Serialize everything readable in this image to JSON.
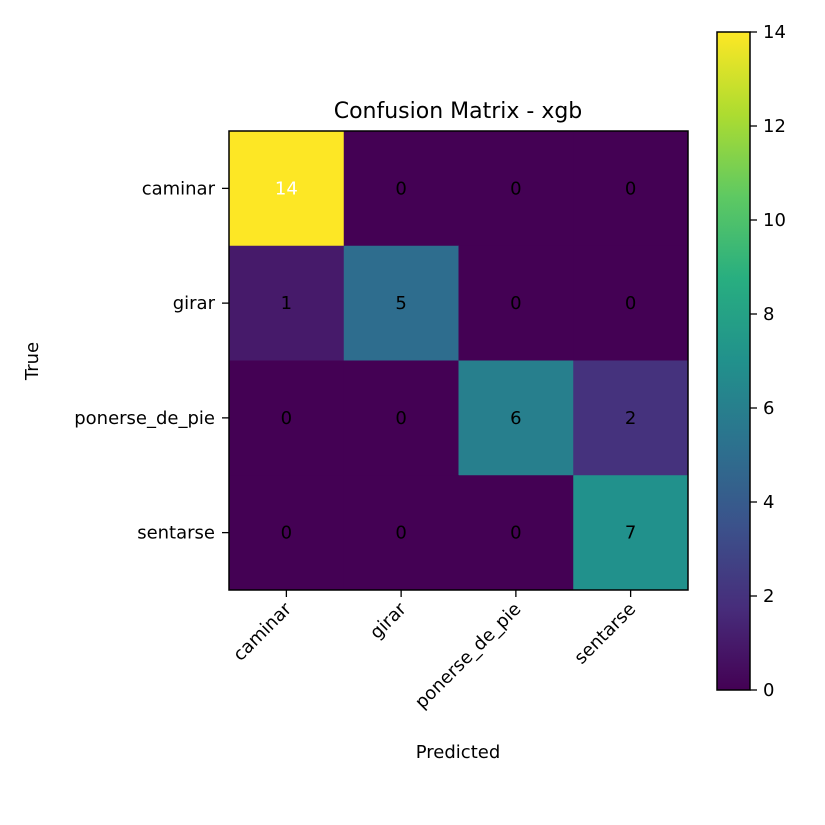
{
  "chart_data": {
    "type": "heatmap",
    "title": "Confusion Matrix - xgb",
    "xlabel": "Predicted",
    "ylabel": "True",
    "x_categories": [
      "caminar",
      "girar",
      "ponerse_de_pie",
      "sentarse"
    ],
    "y_categories": [
      "caminar",
      "girar",
      "ponerse_de_pie",
      "sentarse"
    ],
    "values": [
      [
        14,
        0,
        0,
        0
      ],
      [
        1,
        5,
        0,
        0
      ],
      [
        0,
        0,
        6,
        2
      ],
      [
        0,
        0,
        0,
        7
      ]
    ],
    "colormap": "viridis",
    "colorbar": {
      "range": [
        0,
        14
      ],
      "ticks": [
        "0",
        "2",
        "4",
        "6",
        "8",
        "10",
        "12",
        "14"
      ]
    },
    "grid": false
  }
}
